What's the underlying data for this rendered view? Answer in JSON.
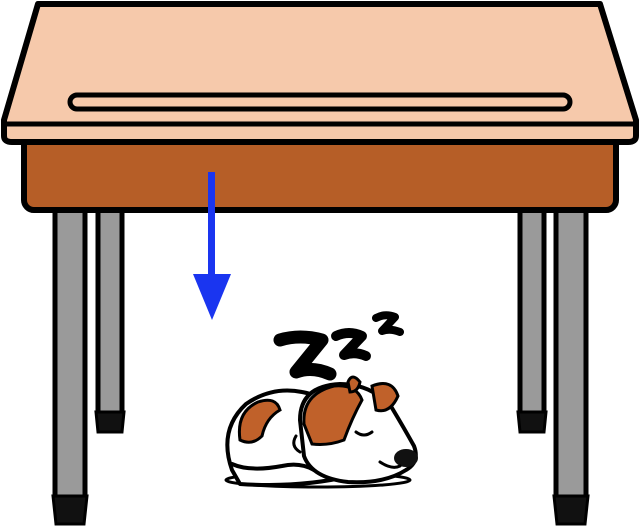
{
  "scene": {
    "desk": {
      "top_color": "#f6c9ab",
      "front_color": "#b65e27",
      "leg_color": "#9a9a9a",
      "outline_color": "#000000"
    },
    "arrow": {
      "color": "#1a35f0",
      "direction": "down"
    },
    "dog": {
      "state": "sleeping",
      "fur_color": "#c0612a",
      "body_color": "#ffffff"
    },
    "snore": {
      "letters": [
        "Z",
        "Z",
        "Z"
      ]
    }
  }
}
